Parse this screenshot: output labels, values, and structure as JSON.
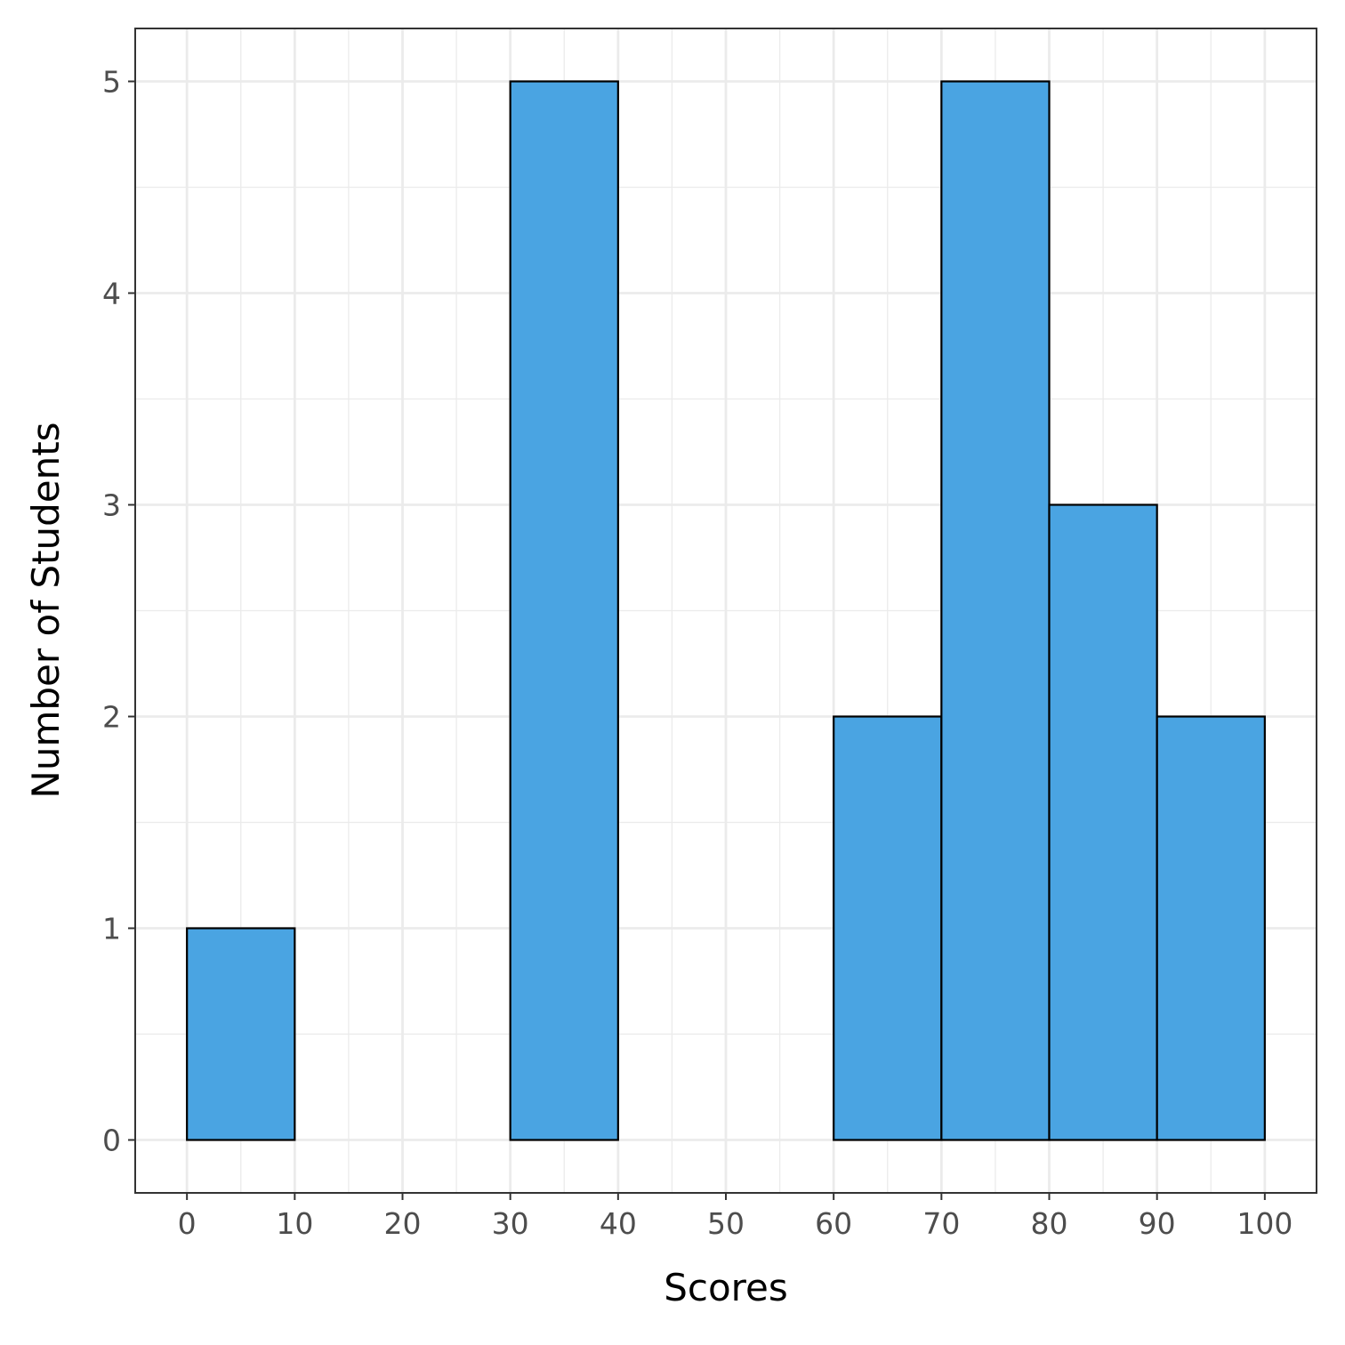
{
  "chart_data": {
    "type": "bar",
    "title": "",
    "xlabel": "Scores",
    "ylabel": "Number of Students",
    "bins": [
      {
        "x0": 0,
        "x1": 10,
        "count": 1
      },
      {
        "x0": 10,
        "x1": 20,
        "count": 0
      },
      {
        "x0": 20,
        "x1": 30,
        "count": 0
      },
      {
        "x0": 30,
        "x1": 40,
        "count": 5
      },
      {
        "x0": 40,
        "x1": 50,
        "count": 0
      },
      {
        "x0": 50,
        "x1": 60,
        "count": 0
      },
      {
        "x0": 60,
        "x1": 70,
        "count": 2
      },
      {
        "x0": 70,
        "x1": 80,
        "count": 5
      },
      {
        "x0": 80,
        "x1": 90,
        "count": 3
      },
      {
        "x0": 90,
        "x1": 100,
        "count": 2
      }
    ],
    "xlim": [
      -4.8,
      104.8
    ],
    "ylim": [
      -0.25,
      5.25
    ],
    "x_ticks": [
      "0",
      "10",
      "20",
      "30",
      "40",
      "50",
      "60",
      "70",
      "80",
      "90",
      "100"
    ],
    "y_ticks": [
      "0",
      "1",
      "2",
      "3",
      "4",
      "5"
    ],
    "grid": true,
    "bar_color": "#4aa4e2",
    "bar_edge_color": "#000000",
    "grid_color": "#ebebeb"
  }
}
